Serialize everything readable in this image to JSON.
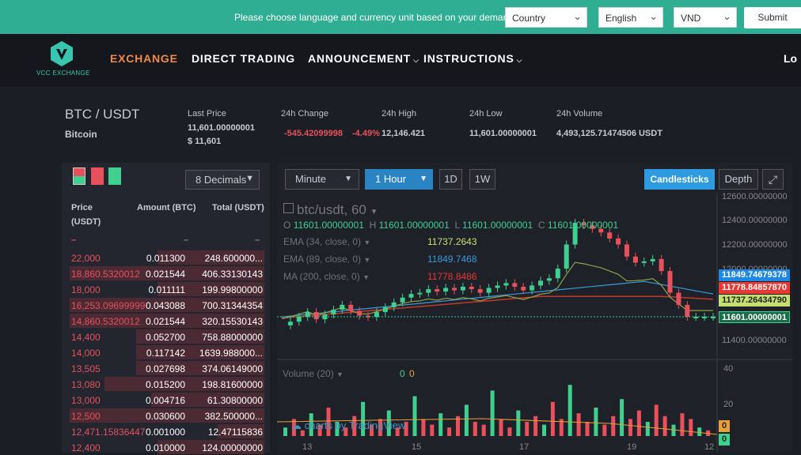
{
  "topbar": {
    "message": "Please choose language and currency unit based on your demand",
    "country": "Country",
    "language": "English",
    "currency": "VND",
    "submit": "Submit"
  },
  "nav": {
    "logo_text": "VCC EXCHANGE",
    "items": [
      "EXCHANGE",
      "DIRECT TRADING",
      "ANNOUNCEMENT",
      "INSTRUCTIONS"
    ],
    "login_partial": "Lo"
  },
  "ticker": {
    "pair": "BTC / USDT",
    "coin": "Bitcoin",
    "last_price_label": "Last Price",
    "last_price": "11,601.00000001",
    "last_price_usd": "$ 11,601",
    "change_label": "24h Change",
    "change_value": "-545.42099998",
    "change_pct": "-4.49%",
    "high_label": "24h High",
    "high_value": "12,146.421",
    "low_label": "24h Low",
    "low_value": "11,601.00000001",
    "volume_label": "24h Volume",
    "volume_value": "4,493,125.71474506 USDT"
  },
  "orderbook": {
    "decimals": "8 Decimals",
    "col_price": "Price",
    "col_price_unit": "(USDT)",
    "col_amount": "Amount (BTC)",
    "col_total": "Total (USDT)",
    "dash": "–",
    "rows": [
      {
        "price": "22,000",
        "amount": "0.011300",
        "total": "248.600000...",
        "fill": 0.55
      },
      {
        "price": "18,860.5320012",
        "amount": "0.021544",
        "total": "406.33130143",
        "fill": 1.0
      },
      {
        "price": "18,000",
        "amount": "0.011111",
        "total": "199.99800000",
        "fill": 0.55
      },
      {
        "price": "16,253.09699999",
        "amount": "0.043088",
        "total": "700.31344354",
        "fill": 1.0
      },
      {
        "price": "14,860.5320012",
        "amount": "0.021544",
        "total": "320.15530143",
        "fill": 1.0
      },
      {
        "price": "14,400",
        "amount": "0.052700",
        "total": "758.88000000",
        "fill": 0.66
      },
      {
        "price": "14,000",
        "amount": "0.117142",
        "total": "1639.988000...",
        "fill": 0.66
      },
      {
        "price": "13,505",
        "amount": "0.027698",
        "total": "374.06149000",
        "fill": 0.66
      },
      {
        "price": "13,080",
        "amount": "0.015200",
        "total": "198.81600000",
        "fill": 0.82
      },
      {
        "price": "13,000",
        "amount": "0.004716",
        "total": "61.30800000",
        "fill": 0.58
      },
      {
        "price": "12,500",
        "amount": "0.030600",
        "total": "382.500000...",
        "fill": 1.0
      },
      {
        "price": "12,471.15836447",
        "amount": "0.001000",
        "total": "12.47115836",
        "fill": 0.24
      },
      {
        "price": "12,400",
        "amount": "0.010000",
        "total": "124.00000000",
        "fill": 0.55
      }
    ]
  },
  "chart_toolbar": {
    "interval": "Minute",
    "resolution": "1 Hour",
    "btn_1d": "1D",
    "btn_1w": "1W",
    "candlesticks": "Candlesticks",
    "depth": "Depth"
  },
  "chart_legend": {
    "symbol": "btc/usdt, 60",
    "o_label": "O",
    "o_value": "11601.00000001",
    "h_label": "H",
    "h_value": "11601.00000001",
    "l_label": "L",
    "l_value": "11601.00000001",
    "c_label": "C",
    "c_value": "11601.00000001",
    "ema34": "EMA (34, close, 0)",
    "ema34_value": "11737.2643",
    "ema89": "EMA (89, close, 0)",
    "ema89_value": "11849.7468",
    "ma200": "MA (200, close, 0)",
    "ma200_value": "11778.8486",
    "volume": "Volume (20)",
    "vol_a": "0",
    "vol_b": "0",
    "watermark": "charts by TradingView"
  },
  "price_axis": {
    "labels": [
      "12600.00000000",
      "12400.00000000",
      "12200.00000000",
      "12000.00000000",
      "11400.00000000"
    ],
    "tags": [
      {
        "text": "11849.74679378",
        "color": "#1e88e5"
      },
      {
        "text": "11778.84857870",
        "color": "#e53935"
      },
      {
        "text": "11737.26434790",
        "color": "#c6e070"
      },
      {
        "text": "11601.00000001",
        "color": "#1f6b4a"
      }
    ],
    "vol_labels": [
      "40",
      "20"
    ],
    "vol_tags": [
      "0",
      "0"
    ]
  },
  "time_axis": [
    "13",
    "15",
    "17",
    "19",
    "12"
  ],
  "colors": {
    "teal": "#2fae94",
    "orange": "#ef8a4a",
    "up": "#3fcf8e",
    "down": "#e8505b",
    "blue": "#2e9be0"
  }
}
